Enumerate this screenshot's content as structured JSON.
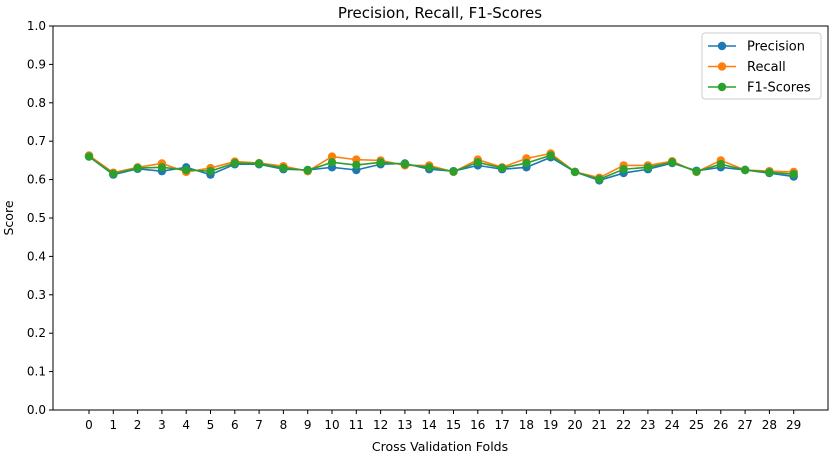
{
  "chart_data": {
    "type": "line",
    "title": "Precision, Recall, F1-Scores",
    "xlabel": "Cross Validation Folds",
    "ylabel": "Score",
    "ylim": [
      0.0,
      1.0
    ],
    "yticks": [
      "0.0",
      "0.1",
      "0.2",
      "0.3",
      "0.4",
      "0.5",
      "0.6",
      "0.7",
      "0.8",
      "0.9",
      "1.0"
    ],
    "x": [
      "0",
      "1",
      "2",
      "3",
      "4",
      "5",
      "6",
      "7",
      "8",
      "9",
      "10",
      "11",
      "12",
      "13",
      "14",
      "15",
      "16",
      "17",
      "18",
      "19",
      "20",
      "21",
      "22",
      "23",
      "24",
      "25",
      "26",
      "27",
      "28",
      "29"
    ],
    "grid": false,
    "legend_position": "top-right",
    "series": [
      {
        "name": "Precision",
        "color": "#1f77b4",
        "values": [
          0.66,
          0.613,
          0.628,
          0.622,
          0.632,
          0.613,
          0.64,
          0.64,
          0.627,
          0.625,
          0.632,
          0.625,
          0.64,
          0.642,
          0.627,
          0.622,
          0.637,
          0.627,
          0.632,
          0.658,
          0.62,
          0.598,
          0.617,
          0.627,
          0.643,
          0.623,
          0.632,
          0.625,
          0.617,
          0.608
        ]
      },
      {
        "name": "Recall",
        "color": "#ff7f0e",
        "values": [
          0.663,
          0.618,
          0.632,
          0.642,
          0.62,
          0.63,
          0.647,
          0.643,
          0.635,
          0.622,
          0.66,
          0.652,
          0.65,
          0.637,
          0.637,
          0.62,
          0.652,
          0.632,
          0.655,
          0.668,
          0.62,
          0.605,
          0.637,
          0.637,
          0.648,
          0.62,
          0.65,
          0.625,
          0.622,
          0.62
        ]
      },
      {
        "name": "F1-Scores",
        "color": "#2ca02c",
        "values": [
          0.66,
          0.615,
          0.63,
          0.632,
          0.625,
          0.622,
          0.643,
          0.642,
          0.63,
          0.624,
          0.645,
          0.638,
          0.645,
          0.64,
          0.632,
          0.621,
          0.645,
          0.63,
          0.643,
          0.663,
          0.62,
          0.601,
          0.627,
          0.632,
          0.645,
          0.621,
          0.64,
          0.625,
          0.619,
          0.614
        ]
      }
    ]
  }
}
